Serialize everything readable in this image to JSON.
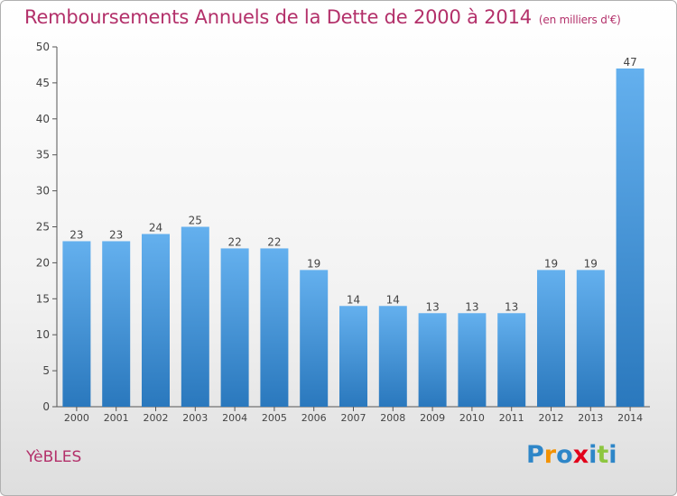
{
  "title": {
    "main": "Remboursements Annuels de la Dette de 2000 à 2014",
    "unit": "(en milliers d'€)"
  },
  "city": "YèBLES",
  "brand": {
    "letters": [
      "P",
      "r",
      "o",
      "x",
      "i",
      "t",
      "i"
    ],
    "colors": [
      "#2e86c8",
      "#f39200",
      "#2e86c8",
      "#e2001a",
      "#2e86c8",
      "#8dc63f",
      "#2e86c8"
    ]
  },
  "colors": {
    "bar": "#3d8fd6",
    "bar_light": "#64b0ee",
    "title": "#b3306a"
  },
  "chart_data": {
    "type": "bar",
    "title": "Remboursements Annuels de la Dette de 2000 à 2014",
    "subtitle": "(en milliers d'€)",
    "xlabel": "",
    "ylabel": "",
    "categories": [
      "2000",
      "2001",
      "2002",
      "2003",
      "2004",
      "2005",
      "2006",
      "2007",
      "2008",
      "2009",
      "2010",
      "2011",
      "2012",
      "2013",
      "2014"
    ],
    "values": [
      23,
      23,
      24,
      25,
      22,
      22,
      19,
      14,
      14,
      13,
      13,
      13,
      19,
      19,
      47
    ],
    "ylim": [
      0,
      50
    ],
    "yticks": [
      0,
      5,
      10,
      15,
      20,
      25,
      30,
      35,
      40,
      45,
      50
    ],
    "grid": false,
    "legend": "none"
  }
}
